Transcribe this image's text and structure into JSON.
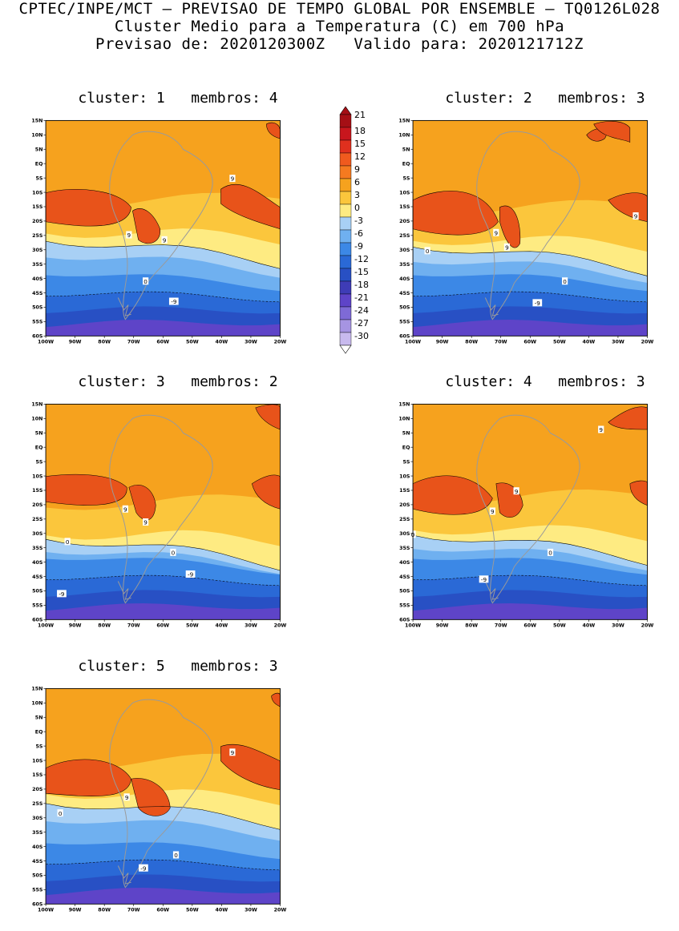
{
  "title": {
    "line1": "CPTEC/INPE/MCT – PREVISAO DE TEMPO GLOBAL POR ENSEMBLE – TQ0126L028",
    "line2": "Cluster Medio para a Temperatura (C) em 700 hPa",
    "line3": "Previsao de: 2020120300Z   Valido para: 2020121712Z"
  },
  "axes": {
    "lat_labels": [
      "15N",
      "10N",
      "5N",
      "EQ",
      "5S",
      "10S",
      "15S",
      "20S",
      "25S",
      "30S",
      "35S",
      "40S",
      "45S",
      "50S",
      "55S",
      "60S"
    ],
    "lon_labels": [
      "100W",
      "90W",
      "80W",
      "70W",
      "60W",
      "50W",
      "40W",
      "30W",
      "20W"
    ]
  },
  "colorbar": {
    "labels": [
      "21",
      "18",
      "15",
      "12",
      "9",
      "6",
      "3",
      "0",
      "-3",
      "-6",
      "-9",
      "-12",
      "-15",
      "-18",
      "-21",
      "-24",
      "-27",
      "-30"
    ],
    "colors": [
      "#a50f15",
      "#c8161d",
      "#e0301e",
      "#f05a1e",
      "#f57a20",
      "#f6a21e",
      "#fbc63c",
      "#feeb82",
      "#a8d0f5",
      "#6fb0f0",
      "#3c88e6",
      "#2a69d6",
      "#2850c4",
      "#3e3cb6",
      "#5e44c8",
      "#7e6ad6",
      "#a694e2",
      "#c8baee"
    ]
  },
  "panels": [
    {
      "title": "cluster: 1   membros: 4",
      "contour_labels": [
        "9",
        "9",
        "9",
        "0",
        "-9"
      ]
    },
    {
      "title": "cluster: 2   membros: 3",
      "contour_labels": [
        "9",
        "9",
        "9",
        "0",
        "0",
        "-9"
      ]
    },
    {
      "title": "cluster: 3   membros: 2",
      "contour_labels": [
        "9",
        "9",
        "0",
        "0",
        "-9",
        "-9"
      ]
    },
    {
      "title": "cluster: 4   membros: 3",
      "contour_labels": [
        "9",
        "9",
        "9",
        "0",
        "0",
        "-9"
      ]
    },
    {
      "title": "cluster: 5   membros: 3",
      "contour_labels": [
        "9",
        "9",
        "0",
        "0",
        "-9"
      ]
    }
  ]
}
